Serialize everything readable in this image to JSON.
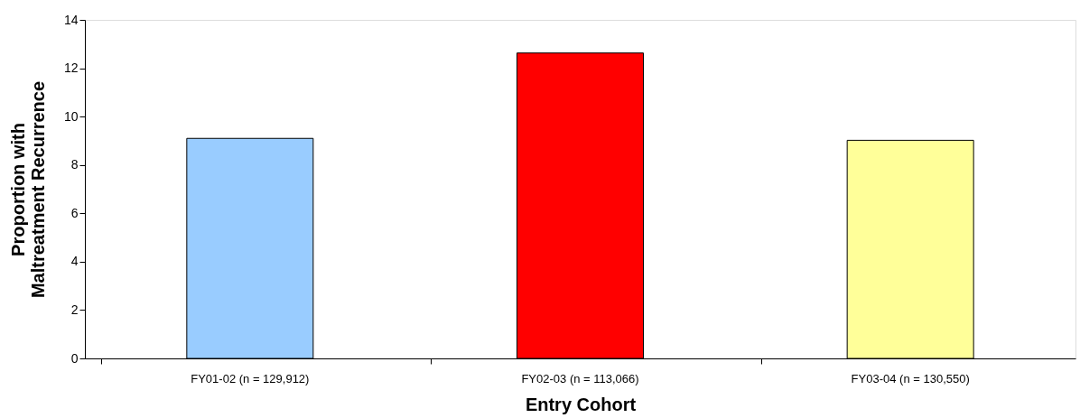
{
  "chart_data": {
    "type": "bar",
    "xlabel": "Entry Cohort",
    "ylabel": "Proportion with\nMaltreatment Recurrence",
    "categories": [
      "FY01-02 (n = 129,912)",
      "FY02-03 (n = 113,066)",
      "FY03-04 (n = 130,550)"
    ],
    "values": [
      9.1,
      12.63,
      9.02
    ],
    "colors": [
      "#99ccff",
      "#ff0000",
      "#ffff99"
    ],
    "ylim": [
      0,
      14
    ],
    "yticks": [
      0,
      2,
      4,
      6,
      8,
      10,
      12,
      14
    ],
    "grid": false,
    "legend": false
  }
}
